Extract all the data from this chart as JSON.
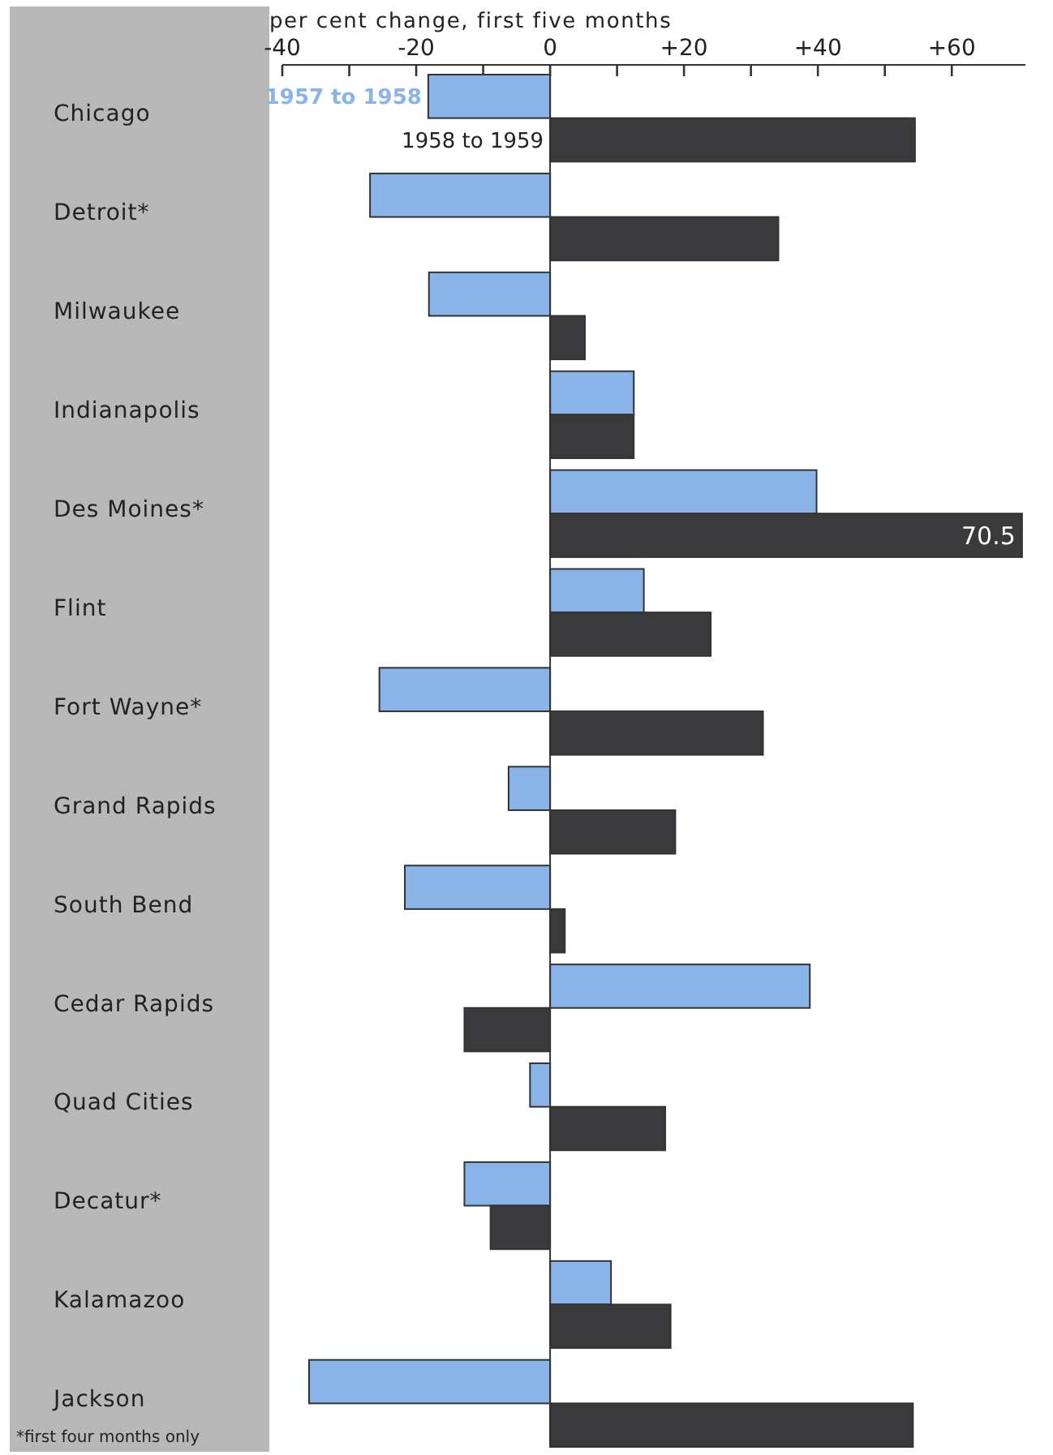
{
  "chart_data": {
    "type": "bar",
    "orientation": "horizontal",
    "xlabel": "per cent change, first five months",
    "categories": [
      "Chicago",
      "Detroit*",
      "Milwaukee",
      "Indianapolis",
      "Des Moines*",
      "Flint",
      "Fort Wayne*",
      "Grand Rapids",
      "South Bend",
      "Cedar Rapids",
      "Quad Cities",
      "Decatur*",
      "Kalamazoo",
      "Jackson"
    ],
    "series": [
      {
        "name": "1957 to 1958",
        "color": "#8ab4e8",
        "values": [
          -18.2,
          -26.9,
          -18.1,
          12.5,
          39.8,
          14,
          -25.5,
          -6.2,
          -21.7,
          38.8,
          -3,
          -12.8,
          9.1,
          -36
        ]
      },
      {
        "name": "1958 to 1959",
        "color": "#3a3a3c",
        "values": [
          54.5,
          34.1,
          5.2,
          12.5,
          70.5,
          24,
          31.8,
          18.7,
          2.2,
          -12.8,
          17.2,
          -8.9,
          18,
          54.2
        ],
        "value_labels": [
          null,
          null,
          null,
          null,
          "70.5",
          null,
          null,
          null,
          null,
          null,
          null,
          null,
          null,
          null
        ]
      }
    ],
    "xlim": [
      -40,
      71
    ],
    "xticks": [
      {
        "value": -40,
        "label": "-40"
      },
      {
        "value": -30,
        "label": null
      },
      {
        "value": -20,
        "label": "-20"
      },
      {
        "value": -10,
        "label": null
      },
      0,
      {
        "value": 10,
        "label": null
      },
      {
        "value": 20,
        "label": "+20"
      },
      {
        "value": 30,
        "label": null
      },
      {
        "value": 40,
        "label": "+40"
      },
      {
        "value": 50,
        "label": null
      },
      {
        "value": 60,
        "label": "+60"
      }
    ],
    "annotations": [
      "*first four months only"
    ]
  }
}
